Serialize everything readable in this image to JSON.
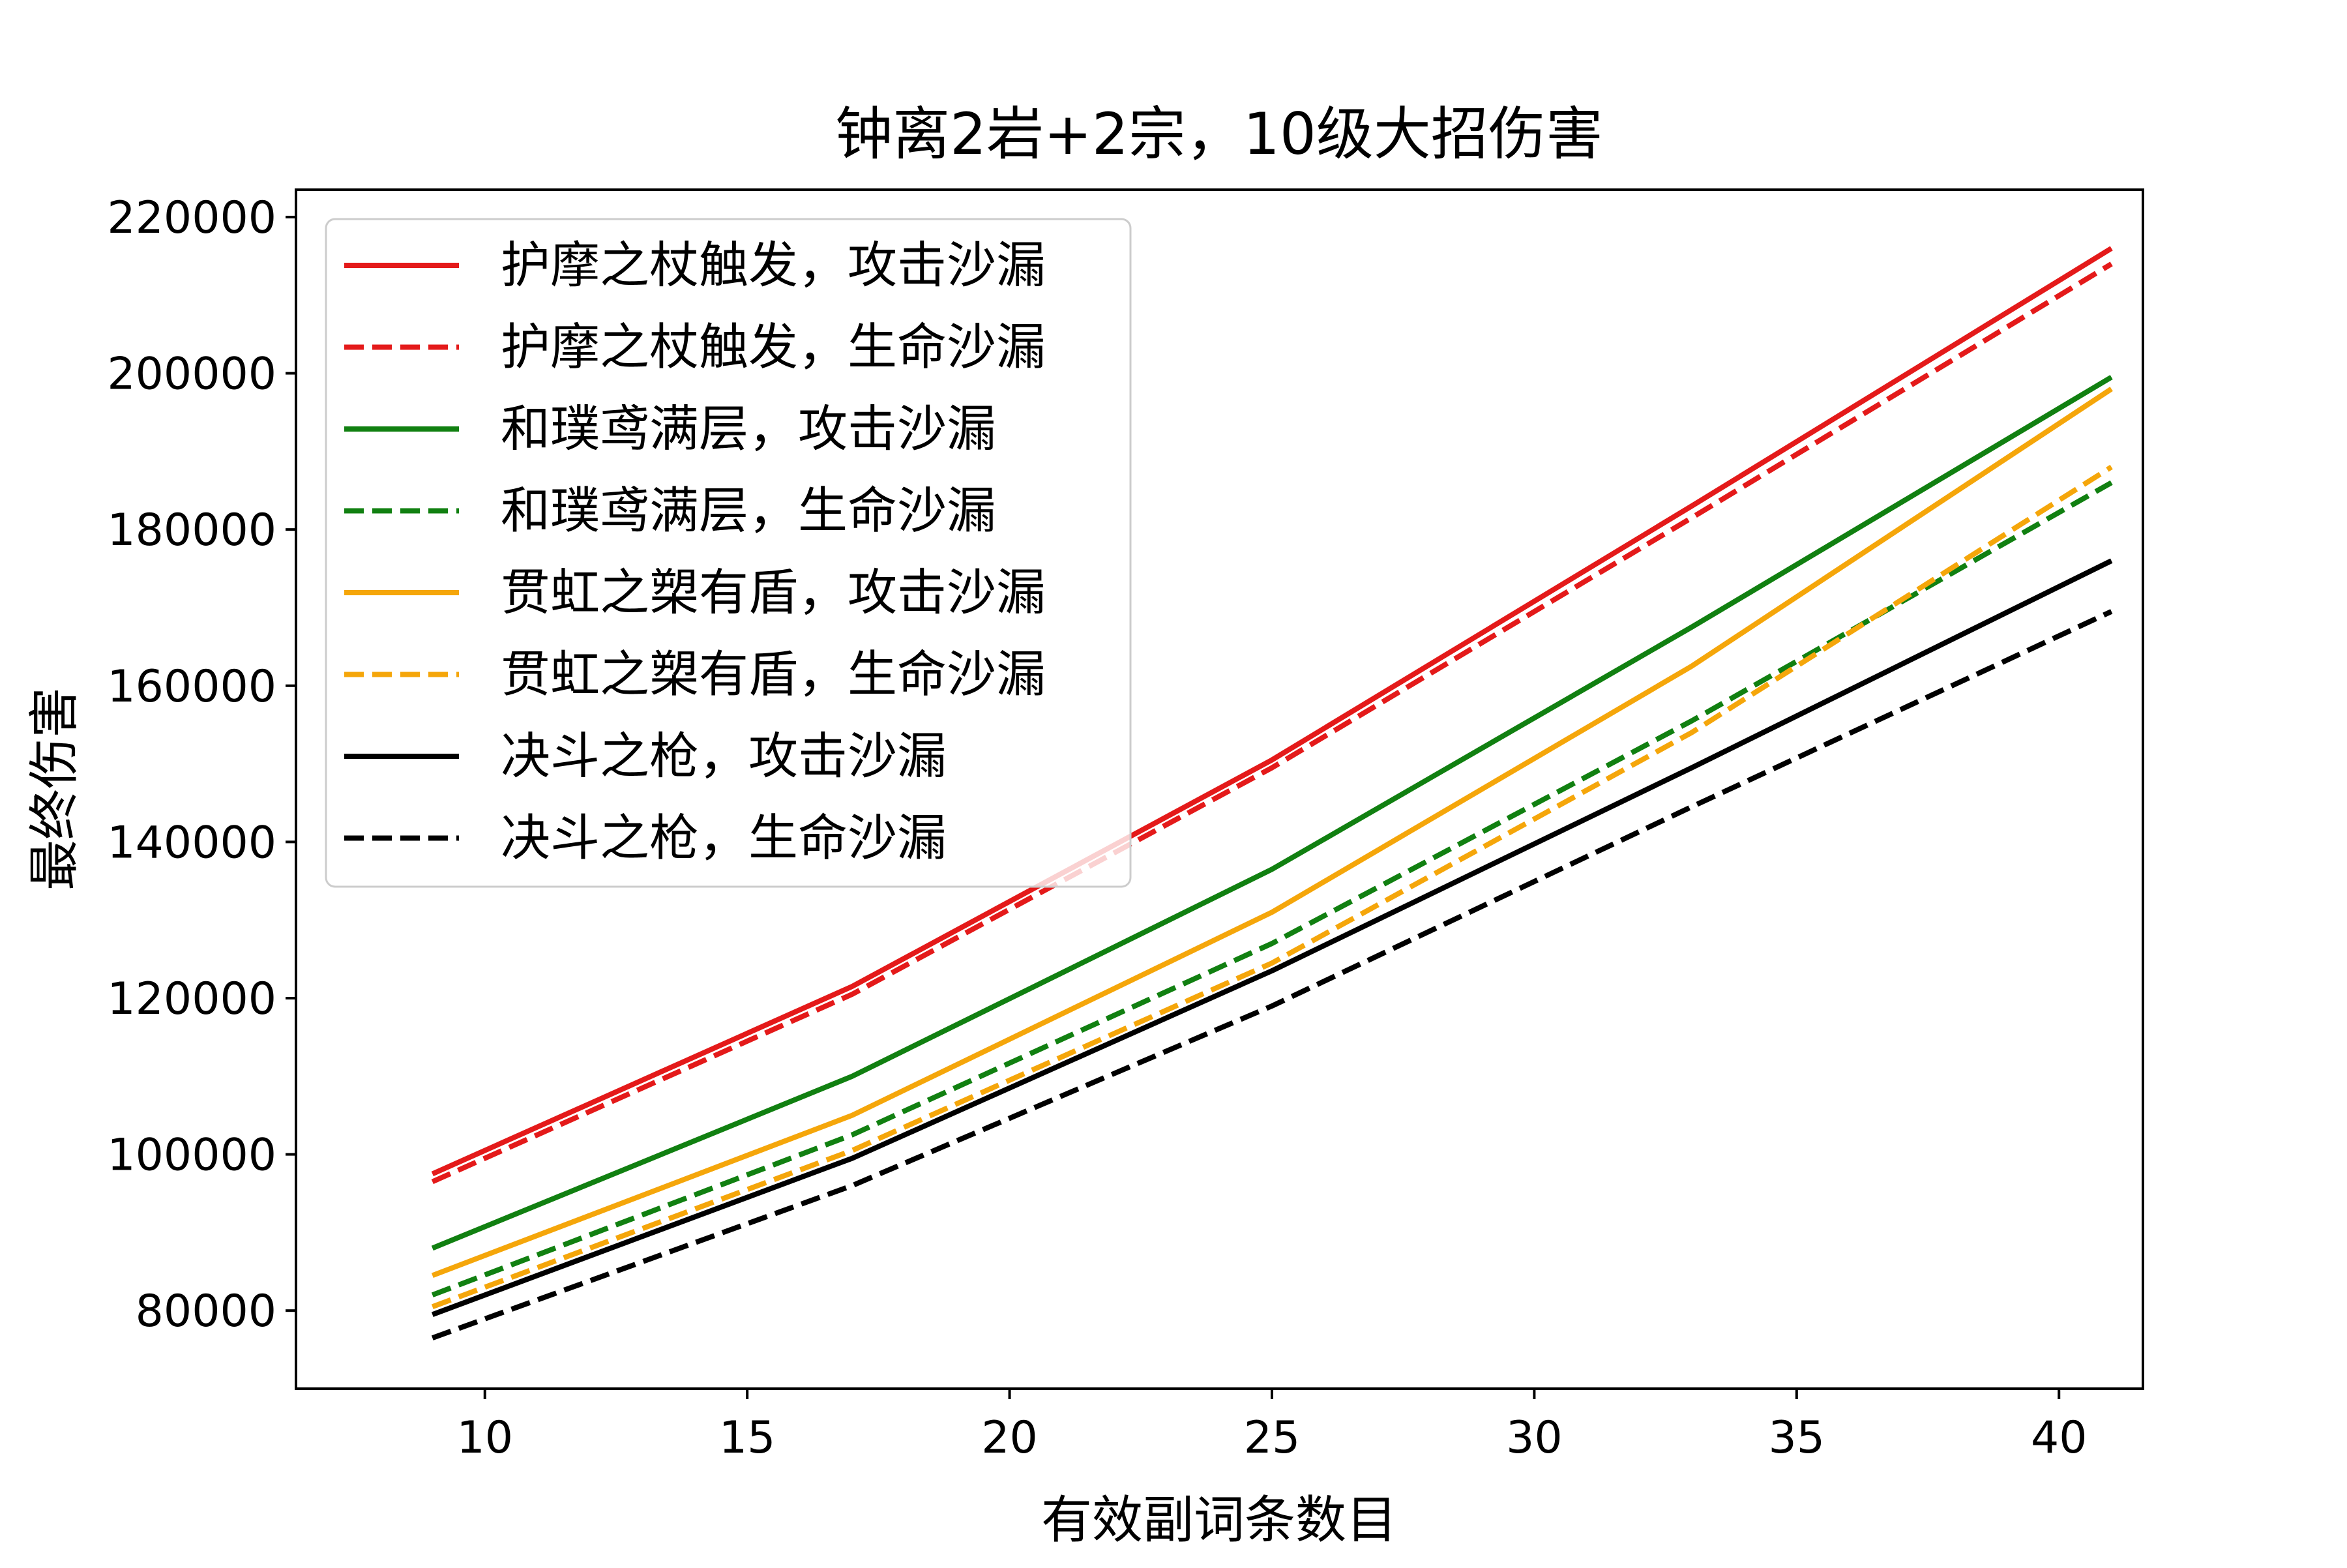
{
  "chart_data": {
    "type": "line",
    "title": "钟离2岩+2宗，10级大招伤害",
    "xlabel": "有效副词条数目",
    "ylabel": "最终伤害",
    "xlim": [
      6.4,
      41.6
    ],
    "ylim": [
      70000,
      223500
    ],
    "x_ticks": [
      "10",
      "15",
      "20",
      "25",
      "30",
      "35",
      "40"
    ],
    "y_ticks": [
      "80000",
      "100000",
      "120000",
      "140000",
      "160000",
      "180000",
      "200000",
      "220000"
    ],
    "grid": false,
    "legend_position": "upper-left",
    "x": [
      9,
      17,
      25,
      33,
      41
    ],
    "series": [
      {
        "name": "护摩之杖触发，攻击沙漏",
        "color": "#e41a1a",
        "style": "solid",
        "values": [
          97500,
          121500,
          150500,
          183000,
          216000
        ]
      },
      {
        "name": "护摩之杖触发，生命沙漏",
        "color": "#e41a1a",
        "style": "dashed",
        "values": [
          96500,
          120500,
          149500,
          181500,
          214000
        ]
      },
      {
        "name": "和璞鸢满层，攻击沙漏",
        "color": "#118011",
        "style": "solid",
        "values": [
          88000,
          110000,
          136500,
          167500,
          199500
        ]
      },
      {
        "name": "和璞鸢满层，生命沙漏",
        "color": "#118011",
        "style": "dashed",
        "values": [
          82000,
          102500,
          127000,
          155500,
          186000
        ]
      },
      {
        "name": "贯虹之槊有盾，攻击沙漏",
        "color": "#f5a60a",
        "style": "solid",
        "values": [
          84500,
          105000,
          131000,
          162500,
          198000
        ]
      },
      {
        "name": "贯虹之槊有盾，生命沙漏",
        "color": "#f5a60a",
        "style": "dashed",
        "values": [
          80500,
          100500,
          124500,
          154000,
          188000
        ]
      },
      {
        "name": "决斗之枪，攻击沙漏",
        "color": "#000000",
        "style": "solid",
        "values": [
          79500,
          99500,
          123500,
          149500,
          176000
        ]
      },
      {
        "name": "决斗之枪，生命沙漏",
        "color": "#000000",
        "style": "dashed",
        "values": [
          76500,
          96000,
          119000,
          144500,
          169500
        ]
      }
    ]
  }
}
